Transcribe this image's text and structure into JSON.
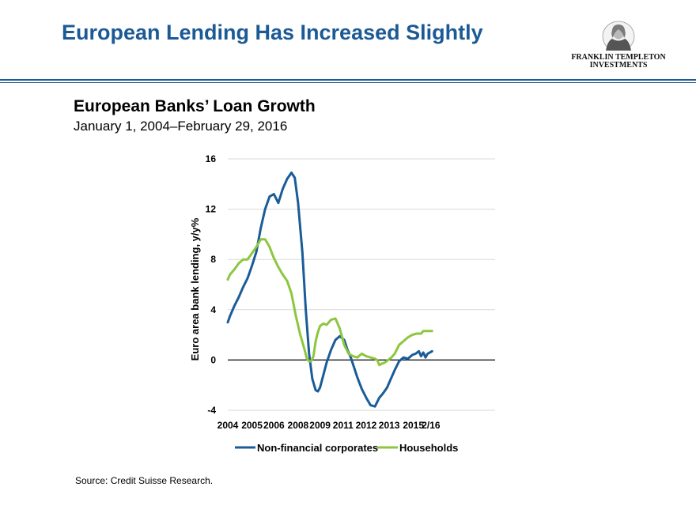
{
  "slide": {
    "title": "European Lending Has Increased Slightly",
    "logo_line1": "FRANKLIN TEMPLETON",
    "logo_line2": "INVESTMENTS",
    "source": "Source: Credit Suisse Research."
  },
  "colors": {
    "title_blue": "#1c5a96",
    "corporates": "#1a5c98",
    "households": "#8dc63f",
    "grid": "#d9d9d9"
  },
  "chart_data": {
    "type": "line",
    "title": "European Banks’ Loan Growth",
    "subtitle": "January 1, 2004–February 29, 2016",
    "xlabel": "",
    "ylabel": "Euro area bank lending, y/y%",
    "ylim": [
      -4,
      16
    ],
    "xlim": [
      2004,
      2016.17
    ],
    "y_ticks": [
      "-4",
      "0",
      "4",
      "8",
      "12",
      "16"
    ],
    "x_ticks": [
      {
        "value": 2004,
        "label": "2004"
      },
      {
        "value": 2005.1,
        "label": "2005"
      },
      {
        "value": 2006.1,
        "label": "2006"
      },
      {
        "value": 2007.2,
        "label": "2008"
      },
      {
        "value": 2008.2,
        "label": "2009"
      },
      {
        "value": 2009.25,
        "label": "2011"
      },
      {
        "value": 2010.3,
        "label": "2012"
      },
      {
        "value": 2011.35,
        "label": "2013"
      },
      {
        "value": 2012.45,
        "label": "2015"
      },
      {
        "value": 2013.25,
        "label": "2/16"
      }
    ],
    "grid": "horizontal",
    "legend": "bottom",
    "series": [
      {
        "name": "Non-financial corporates",
        "x": [
          2004.0,
          2004.1,
          2004.3,
          2004.5,
          2004.7,
          2004.9,
          2005.1,
          2005.3,
          2005.5,
          2005.7,
          2005.9,
          2006.1,
          2006.3,
          2006.5,
          2006.7,
          2006.9,
          2007.05,
          2007.2,
          2007.4,
          2007.55,
          2007.7,
          2007.85,
          2008.0,
          2008.1,
          2008.2,
          2008.35,
          2008.5,
          2008.7,
          2008.9,
          2009.1,
          2009.3,
          2009.45,
          2009.6,
          2009.75,
          2009.9,
          2010.1,
          2010.3,
          2010.5,
          2010.7,
          2010.9,
          2011.05,
          2011.25,
          2011.4,
          2011.6,
          2011.8,
          2012.0,
          2012.2,
          2012.4,
          2012.55,
          2012.7,
          2012.8,
          2012.9,
          2013.0,
          2013.1,
          2013.2,
          2013.3
        ],
        "y": [
          3.0,
          3.5,
          4.3,
          5.0,
          5.8,
          6.5,
          7.5,
          8.6,
          10.5,
          12.0,
          13.0,
          13.2,
          12.5,
          13.6,
          14.4,
          14.9,
          14.5,
          12.5,
          8.5,
          4.0,
          0.5,
          -1.5,
          -2.4,
          -2.5,
          -2.2,
          -1.2,
          -0.2,
          0.8,
          1.6,
          1.9,
          1.6,
          0.8,
          0.2,
          -0.6,
          -1.4,
          -2.3,
          -3.0,
          -3.6,
          -3.7,
          -3.0,
          -2.7,
          -2.2,
          -1.6,
          -0.8,
          -0.1,
          0.2,
          0.1,
          0.4,
          0.5,
          0.7,
          0.3,
          0.6,
          0.2,
          0.5,
          0.6,
          0.7
        ]
      },
      {
        "name": "Households",
        "x": [
          2004.0,
          2004.1,
          2004.3,
          2004.5,
          2004.7,
          2004.9,
          2005.1,
          2005.3,
          2005.5,
          2005.7,
          2005.9,
          2006.1,
          2006.3,
          2006.5,
          2006.7,
          2006.9,
          2007.1,
          2007.3,
          2007.5,
          2007.6,
          2007.7,
          2007.8,
          2007.9,
          2008.0,
          2008.1,
          2008.2,
          2008.35,
          2008.5,
          2008.7,
          2008.9,
          2009.1,
          2009.3,
          2009.5,
          2009.7,
          2009.9,
          2010.1,
          2010.3,
          2010.5,
          2010.7,
          2010.8,
          2010.9,
          2011.0,
          2011.15,
          2011.3,
          2011.45,
          2011.6,
          2011.8,
          2012.0,
          2012.2,
          2012.4,
          2012.6,
          2012.8,
          2012.9,
          2013.0,
          2013.1,
          2013.2,
          2013.3
        ],
        "y": [
          6.4,
          6.8,
          7.2,
          7.7,
          8.0,
          8.0,
          8.5,
          9.0,
          9.6,
          9.6,
          9.0,
          8.1,
          7.4,
          6.8,
          6.3,
          5.3,
          3.5,
          2.0,
          0.8,
          0.1,
          -0.1,
          -0.1,
          0.3,
          1.5,
          2.2,
          2.7,
          2.9,
          2.8,
          3.2,
          3.3,
          2.5,
          1.2,
          0.5,
          0.3,
          0.2,
          0.5,
          0.3,
          0.2,
          0.1,
          0.0,
          -0.4,
          -0.3,
          -0.2,
          0.0,
          0.2,
          0.5,
          1.2,
          1.5,
          1.8,
          2.0,
          2.1,
          2.1,
          2.3,
          2.3,
          2.3,
          2.3,
          2.3
        ]
      }
    ]
  }
}
